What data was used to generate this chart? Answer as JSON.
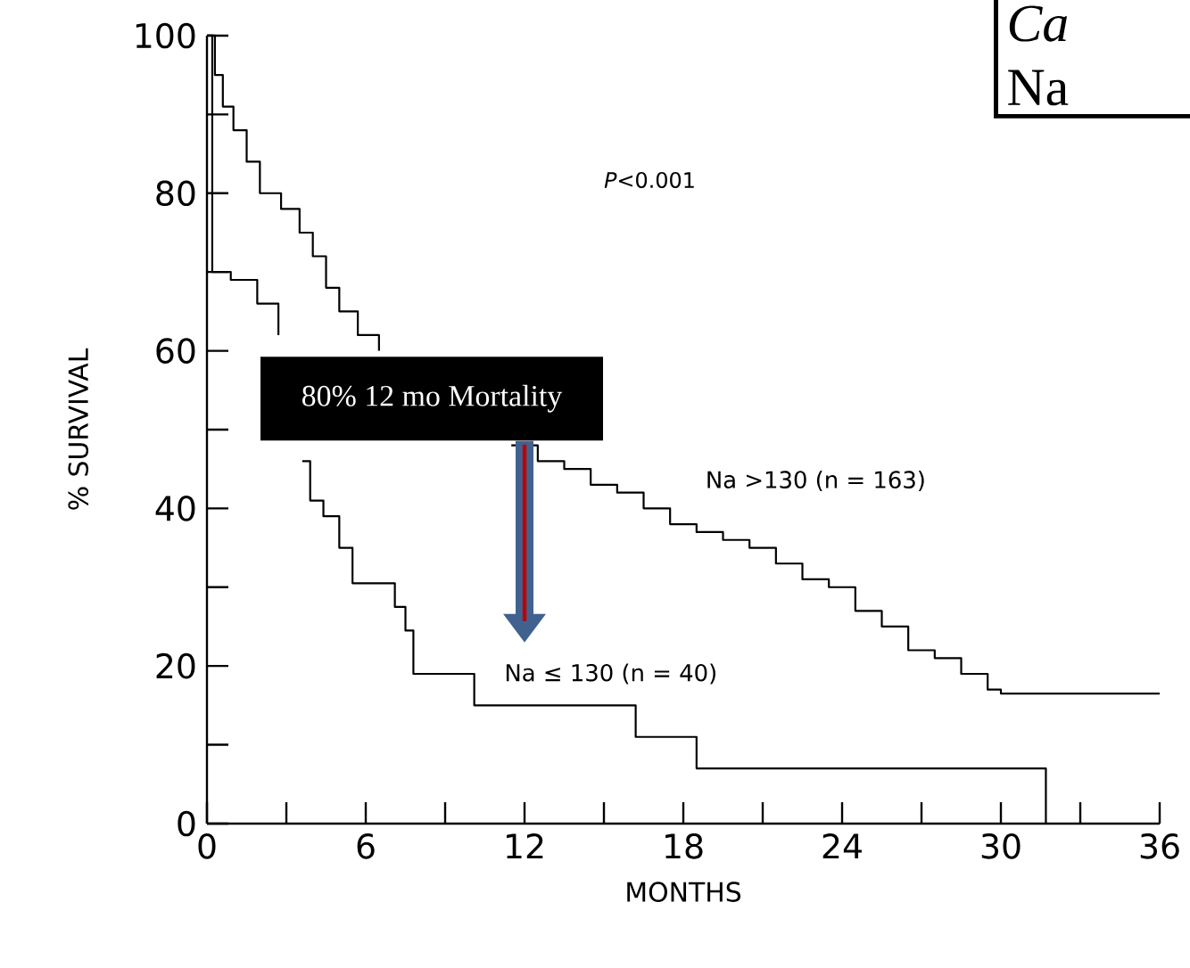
{
  "chart_data": {
    "type": "step",
    "xlabel": "MONTHS",
    "ylabel": "% SURVIVAL",
    "xlim": [
      0,
      36
    ],
    "ylim": [
      0,
      100
    ],
    "xticks": [
      0,
      {
        "value": 3,
        "label": null
      },
      6,
      {
        "value": 9,
        "label": null
      },
      12,
      {
        "value": 15,
        "label": null
      },
      18,
      {
        "value": 21,
        "label": null
      },
      24,
      {
        "value": 27,
        "label": null
      },
      30,
      {
        "value": 33,
        "label": null
      },
      36
    ],
    "yticks": [
      0,
      {
        "value": 10,
        "label": null
      },
      20,
      {
        "value": 30,
        "label": null
      },
      40,
      {
        "value": 50,
        "label": null
      },
      60,
      {
        "value": 70,
        "label": null
      },
      80,
      {
        "value": 90,
        "label": null
      },
      100
    ],
    "series": [
      {
        "name": "Na >130 (n = 163)",
        "color": "#000000",
        "x": [
          0,
          0.3,
          0.6,
          1,
          1.5,
          2,
          2.8,
          3.5,
          4,
          4.5,
          5,
          5.7,
          6.5,
          7.5,
          8.5,
          9.5,
          10.5,
          11.5,
          12.5,
          13.5,
          14.5,
          15.5,
          16.5,
          17.5,
          18.5,
          19.5,
          20.5,
          21.5,
          22.5,
          23.5,
          24.5,
          25.5,
          26.5,
          27.5,
          28.5,
          29.5,
          30,
          36
        ],
        "values": [
          100,
          95,
          91,
          88,
          84,
          80,
          78,
          75,
          72,
          68,
          65,
          62,
          60,
          null,
          null,
          null,
          null,
          48,
          46,
          45,
          43,
          42,
          40,
          38,
          37,
          36,
          35,
          33,
          31,
          30,
          27,
          25,
          22,
          21,
          19,
          17,
          16.5,
          16.5
        ]
      },
      {
        "name": "Na ≤ 130 (n = 40)",
        "color": "#000000",
        "x": [
          0,
          0.2,
          0.9,
          1.9,
          2.7,
          3.2,
          3.6,
          3.9,
          4.4,
          5,
          5.5,
          7.1,
          7.5,
          7.8,
          10.1,
          16.2,
          18.5,
          31.7
        ],
        "values": [
          100,
          70,
          69,
          66,
          62,
          null,
          46,
          41,
          39,
          35,
          30.5,
          27.5,
          24.5,
          19,
          15,
          11,
          7,
          0
        ]
      }
    ],
    "annotations": [
      "*P*<0.001",
      "80% 12 mo Mortality",
      "*Ca*",
      "Na"
    ],
    "grid": false,
    "marker": "none",
    "line_style": "solid"
  }
}
